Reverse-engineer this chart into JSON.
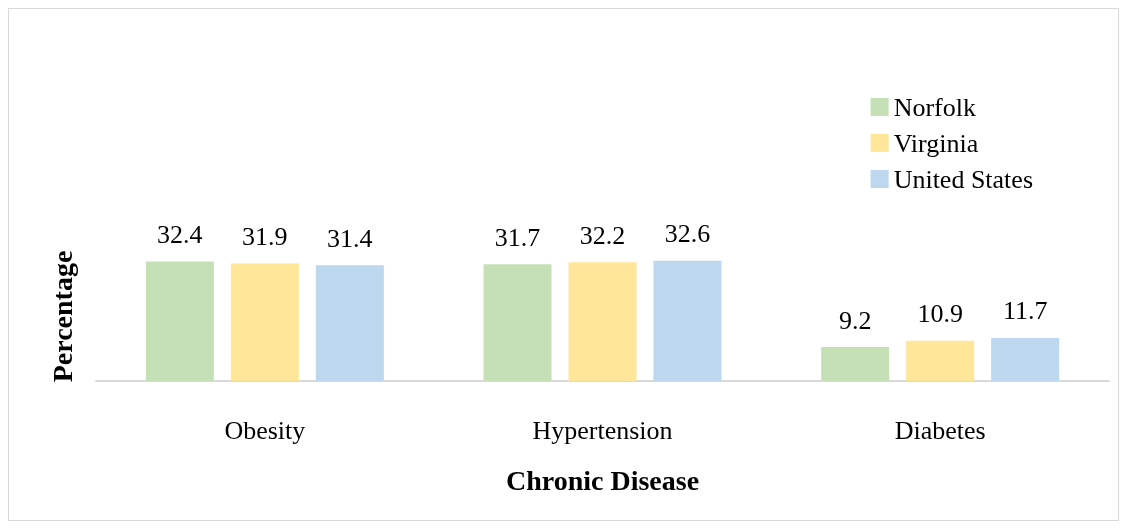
{
  "chart_data": {
    "type": "bar",
    "xlabel": "Chronic Disease",
    "ylabel": "Percentage",
    "categories": [
      "Obesity",
      "Hypertension",
      "Diabetes"
    ],
    "series": [
      {
        "name": "Norfolk",
        "color": "#c5e0b4",
        "values": [
          32.4,
          31.7,
          9.2
        ]
      },
      {
        "name": "Virginia",
        "color": "#ffe699",
        "values": [
          31.9,
          32.2,
          10.9
        ]
      },
      {
        "name": "United States",
        "color": "#bdd7ee",
        "values": [
          31.4,
          32.6,
          11.7
        ]
      }
    ],
    "data_labels": true,
    "legend": "top right",
    "grid": false
  }
}
